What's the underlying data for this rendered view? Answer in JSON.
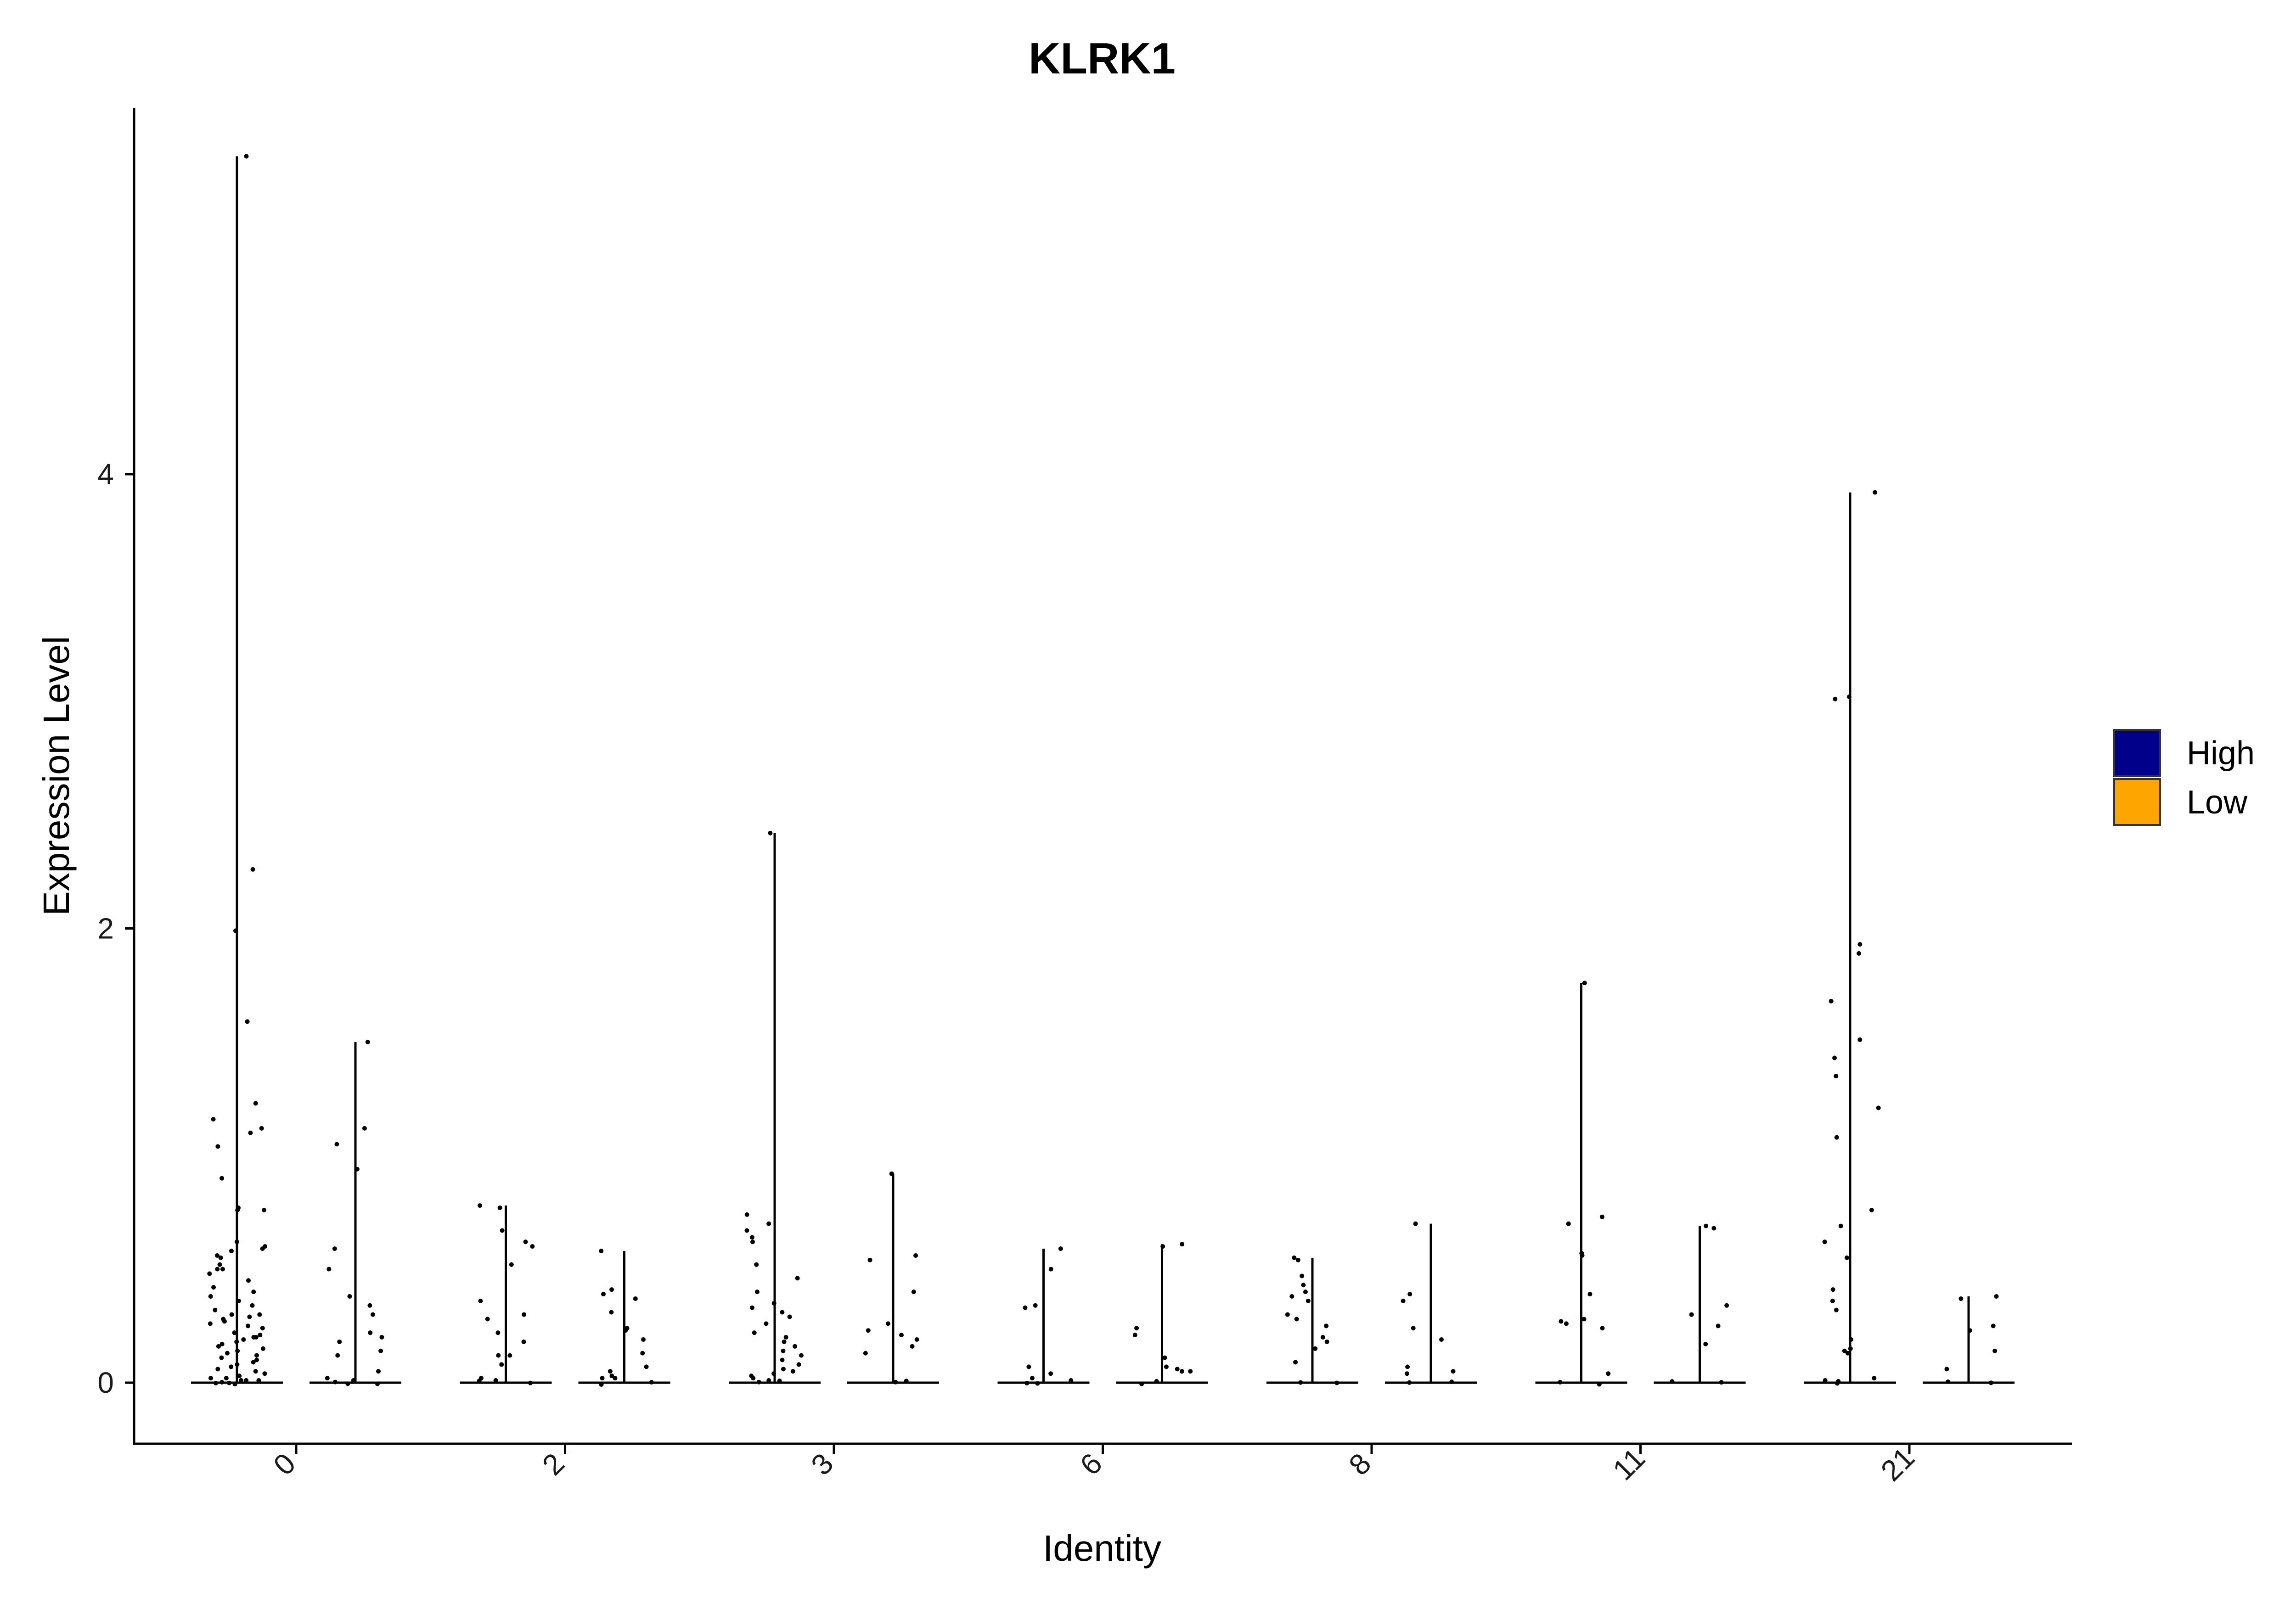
{
  "chart_data": {
    "type": "violin",
    "title": "KLRK1",
    "xlabel": "Identity",
    "ylabel": "Expression Level",
    "categories": [
      "0",
      "2",
      "3",
      "6",
      "8",
      "11",
      "21"
    ],
    "ylim": [
      -0.27,
      5.6
    ],
    "yticks": [
      0,
      2,
      4
    ],
    "grid": false,
    "legend": {
      "position": "right",
      "entries": [
        {
          "label": "High",
          "color": "#00008B"
        },
        {
          "label": "Low",
          "color": "#FFA500"
        }
      ]
    },
    "series": [
      {
        "name": "High",
        "max_values": [
          5.4,
          0.78,
          2.42,
          0.59,
          0.55,
          1.76,
          3.92
        ]
      },
      {
        "name": "Low",
        "max_values": [
          1.5,
          0.58,
          0.92,
          0.61,
          0.7,
          0.69,
          0.38
        ]
      }
    ],
    "points": [
      [
        [
          5.4,
          2.26,
          1.99,
          1.59,
          1.23,
          1.16,
          1.12,
          1.1,
          1.04,
          0.9,
          0.77,
          0.76,
          0.76,
          0.62,
          0.6,
          0.59,
          0.58,
          0.56,
          0.55,
          0.52,
          0.5,
          0.5,
          0.48,
          0.45,
          0.42,
          0.4,
          0.38,
          0.36,
          0.34,
          0.32,
          0.3,
          0.3,
          0.29,
          0.28,
          0.27,
          0.26,
          0.25,
          0.24,
          0.22,
          0.21,
          0.2,
          0.2,
          0.19,
          0.18,
          0.17,
          0.16,
          0.15,
          0.14,
          0.13,
          0.12,
          0.11,
          0.1,
          0.09,
          0.08,
          0.07,
          0.06,
          0.05,
          0.04,
          0.03,
          0.02,
          0.02,
          0.01,
          0.01,
          0.01,
          0.0,
          0.0,
          0.0,
          0.0
        ],
        [
          1.5,
          1.12,
          1.05,
          0.94,
          0.59,
          0.5,
          0.38,
          0.34,
          0.3,
          0.22,
          0.2,
          0.18,
          0.14,
          0.12,
          0.05,
          0.02,
          0.01,
          0.0,
          0.0,
          0.0
        ]
      ],
      [
        [
          0.78,
          0.77,
          0.67,
          0.62,
          0.6,
          0.52,
          0.36,
          0.3,
          0.28,
          0.22,
          0.18,
          0.12,
          0.12,
          0.08,
          0.02,
          0.01,
          0.0,
          0.0
        ],
        [
          0.58,
          0.41,
          0.39,
          0.37,
          0.31,
          0.24,
          0.23,
          0.19,
          0.13,
          0.07,
          0.05,
          0.03,
          0.02,
          0.02,
          0.0,
          0.0
        ]
      ],
      [
        [
          2.42,
          0.74,
          0.7,
          0.67,
          0.64,
          0.62,
          0.52,
          0.46,
          0.4,
          0.35,
          0.33,
          0.31,
          0.29,
          0.26,
          0.22,
          0.2,
          0.18,
          0.16,
          0.14,
          0.12,
          0.1,
          0.08,
          0.06,
          0.05,
          0.04,
          0.03,
          0.02,
          0.01,
          0.0,
          0.0
        ],
        [
          0.92,
          0.56,
          0.54,
          0.4,
          0.26,
          0.23,
          0.21,
          0.19,
          0.16,
          0.13,
          0.0,
          0.0
        ]
      ],
      [
        [
          0.59,
          0.5,
          0.34,
          0.33,
          0.07,
          0.04,
          0.02,
          0.01,
          0.0,
          0.0
        ],
        [
          0.61,
          0.6,
          0.24,
          0.21,
          0.11,
          0.07,
          0.06,
          0.05,
          0.05,
          0.0,
          0.0
        ]
      ],
      [
        [
          0.55,
          0.54,
          0.47,
          0.43,
          0.4,
          0.38,
          0.36,
          0.3,
          0.28,
          0.25,
          0.2,
          0.18,
          0.15,
          0.09,
          0.0,
          0.0
        ],
        [
          0.7,
          0.39,
          0.36,
          0.24,
          0.19,
          0.07,
          0.05,
          0.04,
          0.0,
          0.0
        ]
      ],
      [
        [
          1.76,
          0.73,
          0.7,
          0.57,
          0.56,
          0.39,
          0.28,
          0.27,
          0.26,
          0.24,
          0.04,
          0.0,
          0.0
        ],
        [
          0.69,
          0.68,
          0.34,
          0.3,
          0.25,
          0.17,
          0.0,
          0.0
        ]
      ],
      [
        [
          3.92,
          3.02,
          3.01,
          1.93,
          1.89,
          1.68,
          1.51,
          1.43,
          1.35,
          1.21,
          1.08,
          0.76,
          0.69,
          0.62,
          0.55,
          0.41,
          0.36,
          0.32,
          0.19,
          0.15,
          0.14,
          0.13,
          0.02,
          0.01,
          0.0,
          0.0
        ],
        [
          0.38,
          0.37,
          0.25,
          0.23,
          0.14,
          0.06,
          0.0,
          0.0
        ]
      ]
    ]
  }
}
